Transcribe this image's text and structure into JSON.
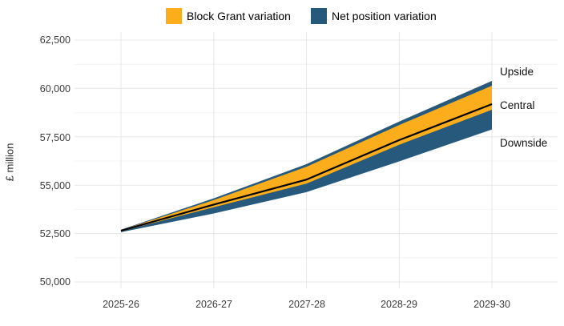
{
  "chart_data": {
    "type": "area",
    "title": "",
    "xlabel": "",
    "ylabel": "£ million",
    "categories": [
      "2025-26",
      "2026-27",
      "2027-28",
      "2028-29",
      "2029-30"
    ],
    "series": [
      {
        "name": "Net position variation upper (Upside)",
        "values": [
          52700,
          54320,
          56090,
          58290,
          60390
        ]
      },
      {
        "name": "Block Grant variation upper",
        "values": [
          52680,
          54230,
          55950,
          58110,
          60140
        ]
      },
      {
        "name": "Central",
        "values": [
          52650,
          54000,
          55290,
          57330,
          59190
        ]
      },
      {
        "name": "Block Grant variation lower",
        "values": [
          52620,
          53860,
          55080,
          57090,
          58900
        ]
      },
      {
        "name": "Net position variation lower (Downside)",
        "values": [
          52570,
          53540,
          54640,
          56230,
          57880
        ]
      }
    ],
    "yticks": [
      50000,
      52500,
      55000,
      57500,
      60000,
      62500
    ],
    "ytick_labels": [
      "50,000",
      "52,500",
      "55,000",
      "57,500",
      "60,000",
      "62,500"
    ],
    "minor_yticks": [
      51250,
      53750,
      56250,
      58750,
      61250
    ],
    "ylim": [
      49750,
      62900
    ],
    "grid": true,
    "legend_position": "top",
    "annotations": [
      {
        "text": "Upside",
        "value": 60850
      },
      {
        "text": "Central",
        "value": 59100
      },
      {
        "text": "Downside",
        "value": 57150
      }
    ]
  },
  "legend": {
    "items": [
      {
        "label": "Block Grant variation",
        "color": "#FBAD1C"
      },
      {
        "label": "Net position variation",
        "color": "#27597D"
      }
    ]
  },
  "colors": {
    "block_grant_band": "#FBAD1C",
    "net_position_band": "#27597D",
    "central_line": "#000000",
    "grid_major": "#E7E7E7",
    "grid_minor": "#F4F4F4"
  }
}
